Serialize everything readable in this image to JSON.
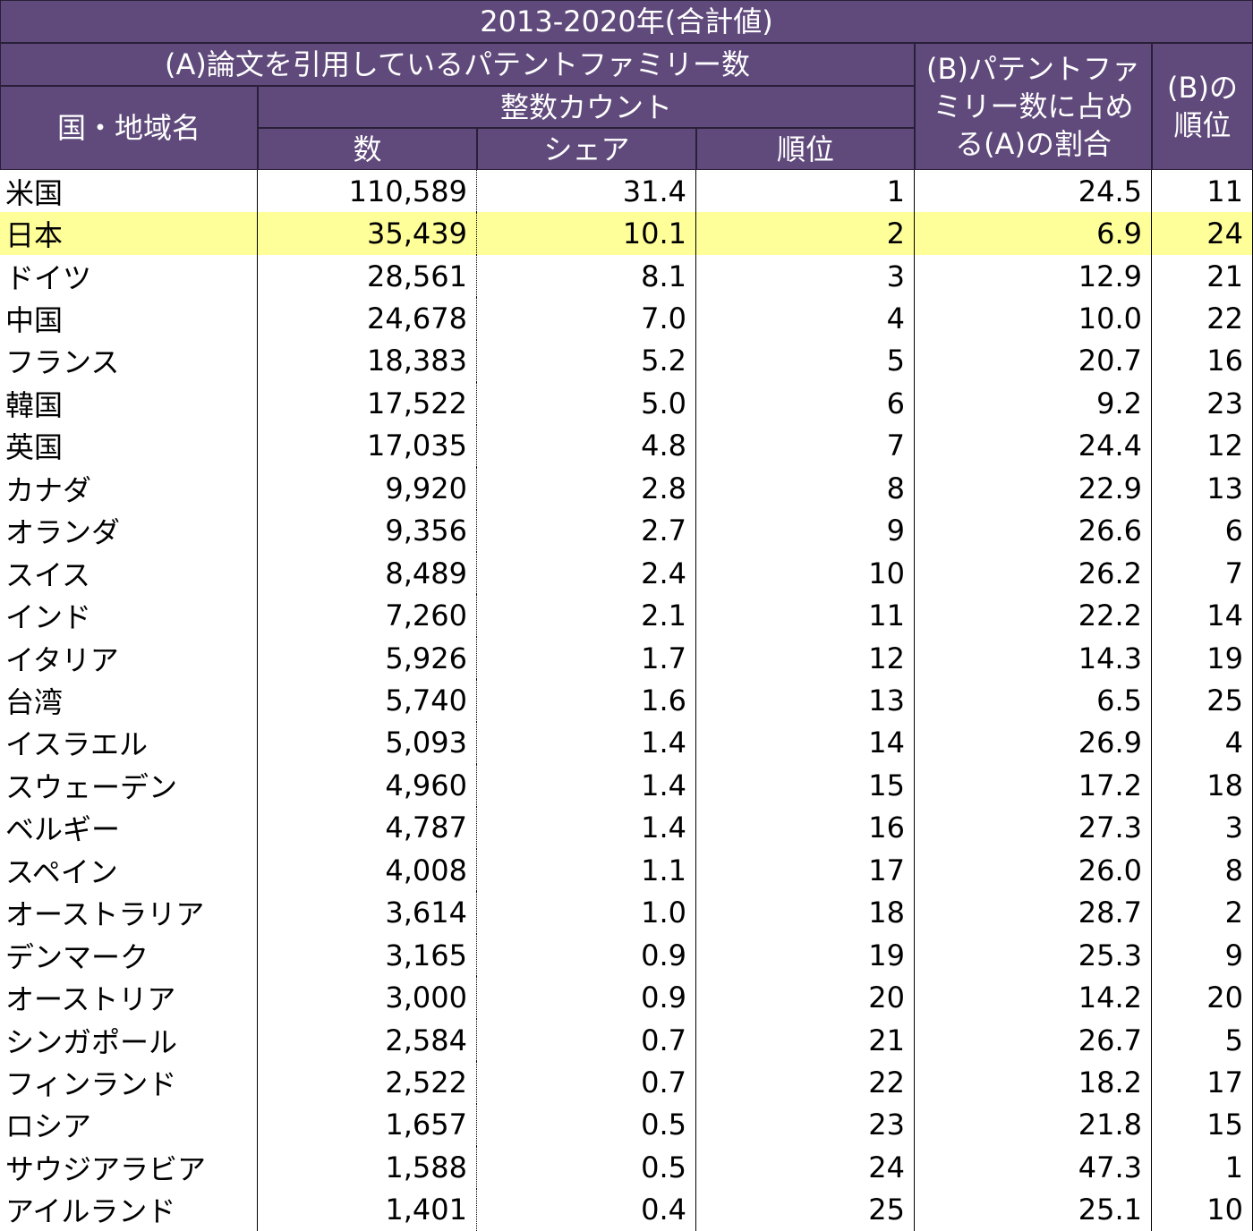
{
  "header": {
    "title": "2013-2020年(合計値)",
    "group_a": "(A)論文を引用しているパテントファミリー数",
    "name_col": "国・地域名",
    "subgroup": "整数カウント",
    "count": "数",
    "share": "シェア",
    "rank": "順位",
    "ratio_b": "(B)パテントファミリー数に占める(A)の割合",
    "rank_b": "(B)の順位"
  },
  "table": {
    "highlight": {
      "row": 1,
      "color": "#ffff99"
    },
    "rows": [
      [
        "米国",
        "110,589",
        "31.4",
        "1",
        "24.5",
        "11"
      ],
      [
        "日本",
        "35,439",
        "10.1",
        "2",
        "6.9",
        "24"
      ],
      [
        "ドイツ",
        "28,561",
        "8.1",
        "3",
        "12.9",
        "21"
      ],
      [
        "中国",
        "24,678",
        "7.0",
        "4",
        "10.0",
        "22"
      ],
      [
        "フランス",
        "18,383",
        "5.2",
        "5",
        "20.7",
        "16"
      ],
      [
        "韓国",
        "17,522",
        "5.0",
        "6",
        "9.2",
        "23"
      ],
      [
        "英国",
        "17,035",
        "4.8",
        "7",
        "24.4",
        "12"
      ],
      [
        "カナダ",
        "9,920",
        "2.8",
        "8",
        "22.9",
        "13"
      ],
      [
        "オランダ",
        "9,356",
        "2.7",
        "9",
        "26.6",
        "6"
      ],
      [
        "スイス",
        "8,489",
        "2.4",
        "10",
        "26.2",
        "7"
      ],
      [
        "インド",
        "7,260",
        "2.1",
        "11",
        "22.2",
        "14"
      ],
      [
        "イタリア",
        "5,926",
        "1.7",
        "12",
        "14.3",
        "19"
      ],
      [
        "台湾",
        "5,740",
        "1.6",
        "13",
        "6.5",
        "25"
      ],
      [
        "イスラエル",
        "5,093",
        "1.4",
        "14",
        "26.9",
        "4"
      ],
      [
        "スウェーデン",
        "4,960",
        "1.4",
        "15",
        "17.2",
        "18"
      ],
      [
        "ベルギー",
        "4,787",
        "1.4",
        "16",
        "27.3",
        "3"
      ],
      [
        "スペイン",
        "4,008",
        "1.1",
        "17",
        "26.0",
        "8"
      ],
      [
        "オーストラリア",
        "3,614",
        "1.0",
        "18",
        "28.7",
        "2"
      ],
      [
        "デンマーク",
        "3,165",
        "0.9",
        "19",
        "25.3",
        "9"
      ],
      [
        "オーストリア",
        "3,000",
        "0.9",
        "20",
        "14.2",
        "20"
      ],
      [
        "シンガポール",
        "2,584",
        "0.7",
        "21",
        "26.7",
        "5"
      ],
      [
        "フィンランド",
        "2,522",
        "0.7",
        "22",
        "18.2",
        "17"
      ],
      [
        "ロシア",
        "1,657",
        "0.5",
        "23",
        "21.8",
        "15"
      ],
      [
        "サウジアラビア",
        "1,588",
        "0.5",
        "24",
        "47.3",
        "1"
      ],
      [
        "アイルランド",
        "1,401",
        "0.4",
        "25",
        "25.1",
        "10"
      ]
    ]
  }
}
